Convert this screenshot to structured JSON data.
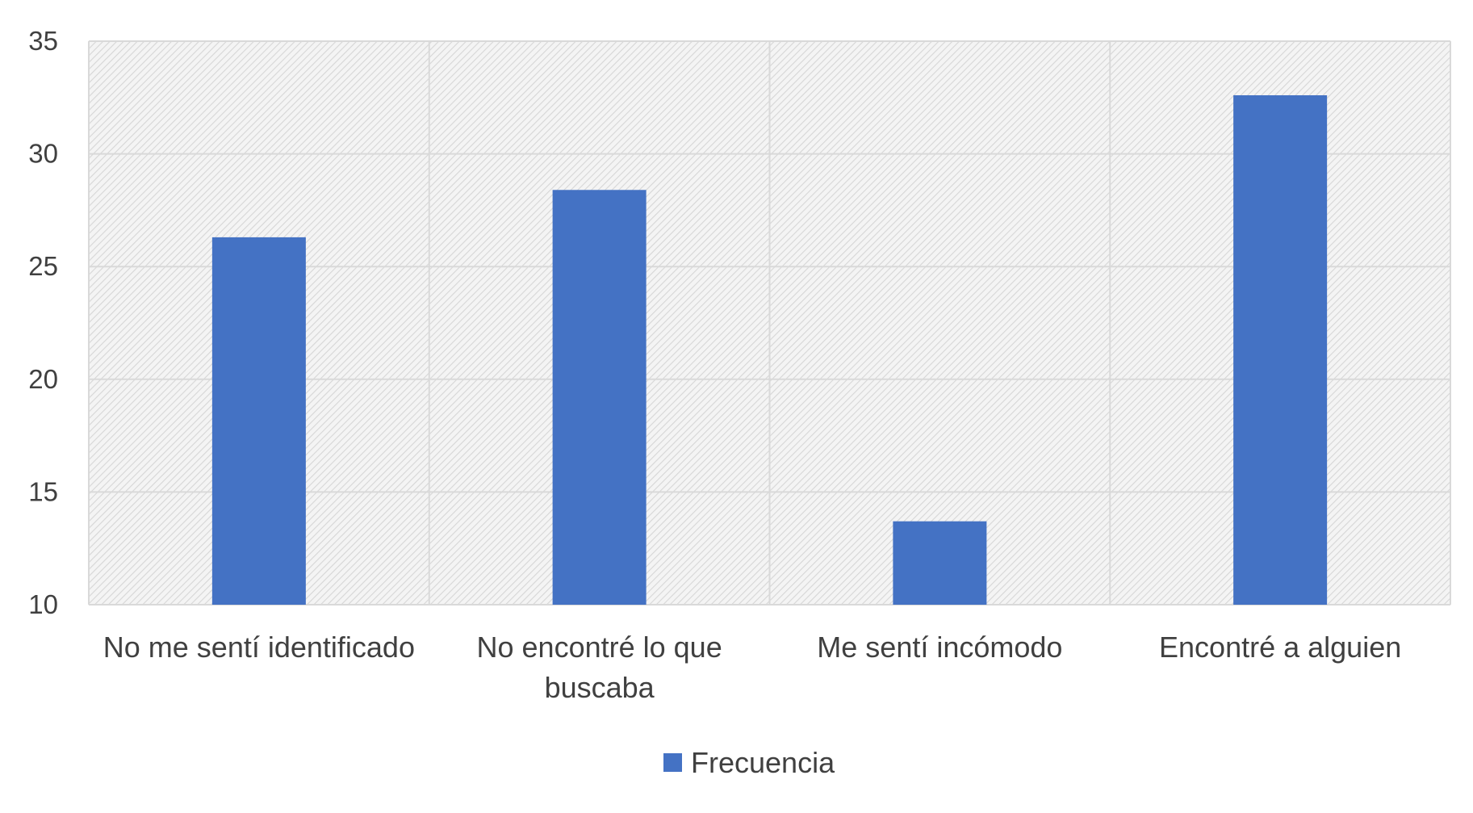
{
  "chart_data": {
    "type": "bar",
    "categories": [
      [
        "No me sentí identificado"
      ],
      [
        "No encontré lo que",
        "buscaba"
      ],
      [
        "Me sentí incómodo"
      ],
      [
        "Encontré a alguien"
      ]
    ],
    "series": [
      {
        "name": "Frecuencia",
        "color": "#4472C4",
        "values": [
          26.3,
          28.4,
          13.7,
          32.6
        ]
      }
    ],
    "ylim": [
      10,
      35
    ],
    "yticks": [
      10,
      15,
      20,
      25,
      30,
      35
    ],
    "grid": true,
    "plot_background": "hatched light gray",
    "legend_position": "bottom"
  }
}
